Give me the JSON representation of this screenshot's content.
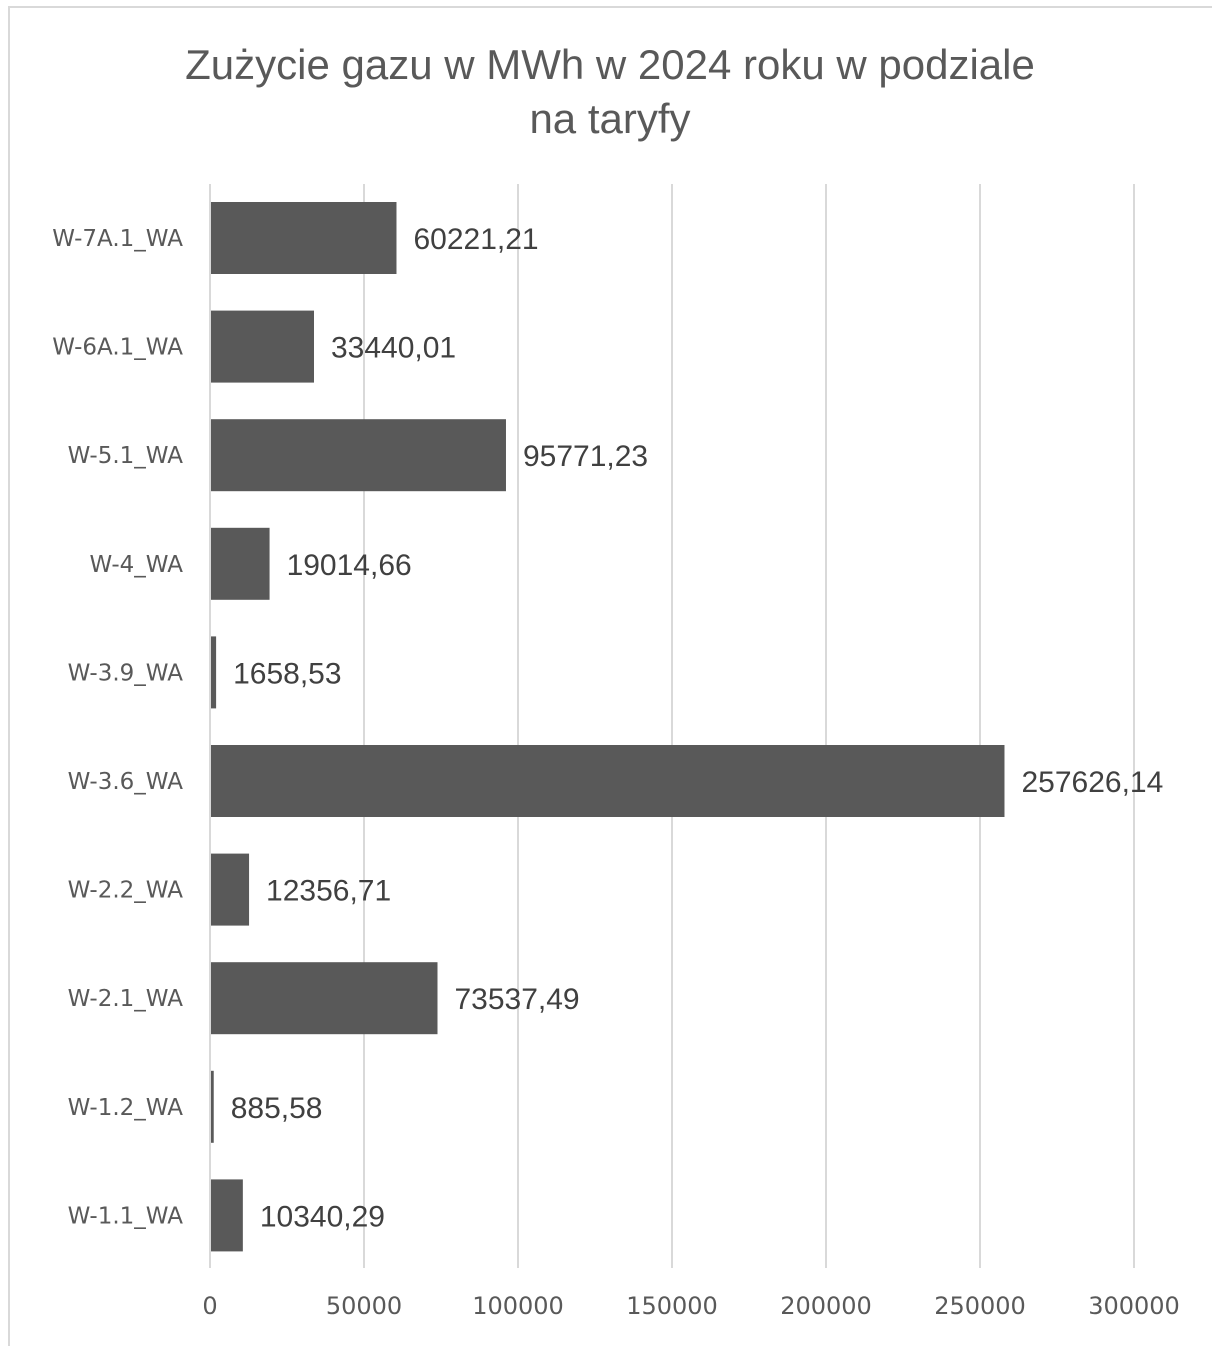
{
  "chart_data": {
    "type": "bar",
    "orientation": "horizontal",
    "title": "Zużycie gazu w MWh w 2024 roku w podziale na taryfy",
    "xlabel": "",
    "ylabel": "",
    "xlim": [
      0,
      300000
    ],
    "x_ticks": [
      "0",
      "50000",
      "100000",
      "150000",
      "200000",
      "250000",
      "300000"
    ],
    "x_tick_values": [
      0,
      50000,
      100000,
      150000,
      200000,
      250000,
      300000
    ],
    "grid": true,
    "legend": "none",
    "bar_color": "#595959",
    "categories": [
      "W-7A.1_WA",
      "W-6A.1_WA",
      "W-5.1_WA",
      "W-4_WA",
      "W-3.9_WA",
      "W-3.6_WA",
      "W-2.2_WA",
      "W-2.1_WA",
      "W-1.2_WA",
      "W-1.1_WA"
    ],
    "values": [
      60221.21,
      33440.01,
      95771.23,
      19014.66,
      1658.53,
      257626.14,
      12356.71,
      73537.49,
      885.58,
      10340.29
    ],
    "data_labels": [
      "60221,21",
      "33440,01",
      "95771,23",
      "19014,66",
      "1658,53",
      "257626,14",
      "12356,71",
      "73537,49",
      "885,58",
      "10340,29"
    ]
  }
}
